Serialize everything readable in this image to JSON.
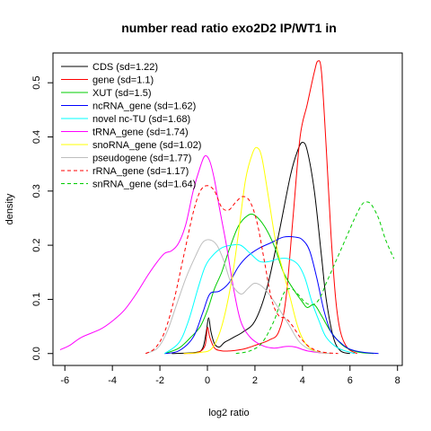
{
  "chart_data": {
    "type": "line",
    "title": "number read ratio exo2D2 IP/WT1 in",
    "xlabel": "log2 ratio",
    "ylabel": "density",
    "xlim": [
      -6.5,
      8.2
    ],
    "ylim": [
      -0.022,
      0.555
    ],
    "xticks": [
      -6,
      -4,
      -2,
      0,
      2,
      4,
      6,
      8
    ],
    "yticks": [
      0.0,
      0.1,
      0.2,
      0.3,
      0.4,
      0.5
    ],
    "ytick_labels": [
      "0.0",
      "0.1",
      "0.2",
      "0.3",
      "0.4",
      "0.5"
    ],
    "grid": false,
    "legend_position": "top-left",
    "series": [
      {
        "name": "CDS (sd=1.22)",
        "color": "#000000",
        "dash": "solid",
        "points": [
          [
            -1.5,
            0
          ],
          [
            -0.5,
            0.002
          ],
          [
            -0.2,
            0.01
          ],
          [
            -0.05,
            0.04
          ],
          [
            0.05,
            0.066
          ],
          [
            0.15,
            0.04
          ],
          [
            0.3,
            0.018
          ],
          [
            0.5,
            0.012
          ],
          [
            0.7,
            0.02
          ],
          [
            0.9,
            0.025
          ],
          [
            1.1,
            0.03
          ],
          [
            1.5,
            0.04
          ],
          [
            2.0,
            0.06
          ],
          [
            2.5,
            0.12
          ],
          [
            3.0,
            0.22
          ],
          [
            3.5,
            0.33
          ],
          [
            3.8,
            0.375
          ],
          [
            4.0,
            0.39
          ],
          [
            4.2,
            0.375
          ],
          [
            4.5,
            0.3
          ],
          [
            4.8,
            0.18
          ],
          [
            5.0,
            0.1
          ],
          [
            5.3,
            0.03
          ],
          [
            5.6,
            0.005
          ],
          [
            6.0,
            0
          ]
        ]
      },
      {
        "name": "gene (sd=1.1)",
        "color": "#ff0000",
        "dash": "solid",
        "points": [
          [
            -1.0,
            0
          ],
          [
            -0.4,
            0.002
          ],
          [
            -0.1,
            0.015
          ],
          [
            0.0,
            0.048
          ],
          [
            0.1,
            0.03
          ],
          [
            0.3,
            0.01
          ],
          [
            0.6,
            0.005
          ],
          [
            1.0,
            0.005
          ],
          [
            1.5,
            0.008
          ],
          [
            2.0,
            0.015
          ],
          [
            2.6,
            0.025
          ],
          [
            3.0,
            0.04
          ],
          [
            3.3,
            0.1
          ],
          [
            3.6,
            0.25
          ],
          [
            3.9,
            0.4
          ],
          [
            4.2,
            0.46
          ],
          [
            4.5,
            0.52
          ],
          [
            4.65,
            0.54
          ],
          [
            4.8,
            0.52
          ],
          [
            5.0,
            0.38
          ],
          [
            5.2,
            0.22
          ],
          [
            5.4,
            0.1
          ],
          [
            5.6,
            0.04
          ],
          [
            5.9,
            0.01
          ],
          [
            6.3,
            0
          ]
        ]
      },
      {
        "name": "XUT (sd=1.5)",
        "color": "#00cc00",
        "dash": "solid",
        "points": [
          [
            -1.8,
            0
          ],
          [
            -1.2,
            0.01
          ],
          [
            -0.7,
            0.03
          ],
          [
            -0.3,
            0.05
          ],
          [
            0.0,
            0.08
          ],
          [
            0.3,
            0.12
          ],
          [
            0.6,
            0.15
          ],
          [
            0.9,
            0.19
          ],
          [
            1.3,
            0.235
          ],
          [
            1.7,
            0.255
          ],
          [
            2.0,
            0.255
          ],
          [
            2.4,
            0.235
          ],
          [
            2.8,
            0.2
          ],
          [
            3.2,
            0.15
          ],
          [
            3.6,
            0.12
          ],
          [
            4.0,
            0.095
          ],
          [
            4.2,
            0.085
          ],
          [
            4.5,
            0.09
          ],
          [
            4.8,
            0.07
          ],
          [
            5.2,
            0.04
          ],
          [
            5.7,
            0.015
          ],
          [
            6.3,
            0.003
          ],
          [
            7.0,
            0
          ]
        ]
      },
      {
        "name": "ncRNA_gene (sd=1.62)",
        "color": "#0000ff",
        "dash": "solid",
        "points": [
          [
            -1.8,
            0
          ],
          [
            -1.2,
            0.005
          ],
          [
            -0.6,
            0.03
          ],
          [
            -0.2,
            0.075
          ],
          [
            0.1,
            0.11
          ],
          [
            0.5,
            0.115
          ],
          [
            0.9,
            0.13
          ],
          [
            1.3,
            0.16
          ],
          [
            1.7,
            0.18
          ],
          [
            2.2,
            0.195
          ],
          [
            2.7,
            0.205
          ],
          [
            3.2,
            0.215
          ],
          [
            3.7,
            0.215
          ],
          [
            4.0,
            0.21
          ],
          [
            4.3,
            0.19
          ],
          [
            4.6,
            0.14
          ],
          [
            4.9,
            0.08
          ],
          [
            5.2,
            0.04
          ],
          [
            5.6,
            0.02
          ],
          [
            6.0,
            0.008
          ],
          [
            6.6,
            0.002
          ],
          [
            7.2,
            0
          ]
        ]
      },
      {
        "name": "novel nc-TU (sd=1.68)",
        "color": "#00ffff",
        "dash": "solid",
        "points": [
          [
            -1.8,
            0
          ],
          [
            -1.2,
            0.02
          ],
          [
            -0.8,
            0.06
          ],
          [
            -0.4,
            0.12
          ],
          [
            -0.1,
            0.16
          ],
          [
            0.2,
            0.18
          ],
          [
            0.6,
            0.195
          ],
          [
            1.0,
            0.2
          ],
          [
            1.4,
            0.2
          ],
          [
            1.8,
            0.185
          ],
          [
            2.2,
            0.17
          ],
          [
            2.6,
            0.17
          ],
          [
            3.0,
            0.175
          ],
          [
            3.4,
            0.175
          ],
          [
            3.8,
            0.165
          ],
          [
            4.1,
            0.14
          ],
          [
            4.4,
            0.095
          ],
          [
            4.7,
            0.06
          ],
          [
            5.0,
            0.03
          ],
          [
            5.5,
            0.01
          ],
          [
            6.2,
            0
          ]
        ]
      },
      {
        "name": "tRNA_gene (sd=1.74)",
        "color": "#ff00ff",
        "dash": "solid",
        "points": [
          [
            -6.2,
            0.007
          ],
          [
            -5.8,
            0.015
          ],
          [
            -5.3,
            0.03
          ],
          [
            -4.5,
            0.045
          ],
          [
            -4.0,
            0.06
          ],
          [
            -3.5,
            0.08
          ],
          [
            -3.0,
            0.11
          ],
          [
            -2.5,
            0.145
          ],
          [
            -2.1,
            0.17
          ],
          [
            -1.8,
            0.185
          ],
          [
            -1.5,
            0.19
          ],
          [
            -1.2,
            0.205
          ],
          [
            -0.9,
            0.24
          ],
          [
            -0.6,
            0.3
          ],
          [
            -0.3,
            0.345
          ],
          [
            -0.1,
            0.365
          ],
          [
            0.1,
            0.355
          ],
          [
            0.3,
            0.32
          ],
          [
            0.5,
            0.27
          ],
          [
            0.8,
            0.2
          ],
          [
            1.1,
            0.12
          ],
          [
            1.4,
            0.06
          ],
          [
            1.8,
            0.03
          ],
          [
            2.3,
            0.015
          ],
          [
            2.8,
            0.01
          ],
          [
            3.3,
            0.013
          ],
          [
            3.7,
            0.012
          ],
          [
            4.2,
            0.005
          ],
          [
            5.0,
            0
          ]
        ]
      },
      {
        "name": "snoRNA_gene (sd=1.02)",
        "color": "#ffff00",
        "dash": "solid",
        "points": [
          [
            -1.0,
            0
          ],
          [
            -0.3,
            0.002
          ],
          [
            0.2,
            0.01
          ],
          [
            0.6,
            0.05
          ],
          [
            1.0,
            0.13
          ],
          [
            1.3,
            0.22
          ],
          [
            1.6,
            0.32
          ],
          [
            1.9,
            0.37
          ],
          [
            2.1,
            0.38
          ],
          [
            2.3,
            0.36
          ],
          [
            2.6,
            0.28
          ],
          [
            2.9,
            0.2
          ],
          [
            3.2,
            0.15
          ],
          [
            3.5,
            0.1
          ],
          [
            3.8,
            0.05
          ],
          [
            4.1,
            0.02
          ],
          [
            4.5,
            0.005
          ],
          [
            5.0,
            0
          ]
        ]
      },
      {
        "name": "pseudogene (sd=1.77)",
        "color": "#bebebe",
        "dash": "solid",
        "points": [
          [
            -2.6,
            0
          ],
          [
            -2.1,
            0.01
          ],
          [
            -1.7,
            0.04
          ],
          [
            -1.3,
            0.09
          ],
          [
            -0.9,
            0.14
          ],
          [
            -0.5,
            0.18
          ],
          [
            -0.2,
            0.205
          ],
          [
            0.1,
            0.21
          ],
          [
            0.4,
            0.2
          ],
          [
            0.7,
            0.17
          ],
          [
            1.0,
            0.13
          ],
          [
            1.4,
            0.11
          ],
          [
            1.7,
            0.12
          ],
          [
            2.0,
            0.13
          ],
          [
            2.4,
            0.12
          ],
          [
            2.9,
            0.09
          ],
          [
            3.4,
            0.055
          ],
          [
            3.9,
            0.02
          ],
          [
            4.5,
            0.004
          ],
          [
            5.2,
            0
          ]
        ]
      },
      {
        "name": "rRNA_gene (sd=1.17)",
        "color": "#ff0000",
        "dash": "dashed",
        "points": [
          [
            -2.6,
            0
          ],
          [
            -2.2,
            0.01
          ],
          [
            -1.8,
            0.04
          ],
          [
            -1.4,
            0.1
          ],
          [
            -1.0,
            0.18
          ],
          [
            -0.6,
            0.26
          ],
          [
            -0.3,
            0.3
          ],
          [
            0.0,
            0.31
          ],
          [
            0.3,
            0.3
          ],
          [
            0.6,
            0.27
          ],
          [
            0.9,
            0.265
          ],
          [
            1.2,
            0.28
          ],
          [
            1.5,
            0.29
          ],
          [
            1.8,
            0.28
          ],
          [
            2.1,
            0.24
          ],
          [
            2.4,
            0.17
          ],
          [
            2.7,
            0.1
          ],
          [
            3.0,
            0.07
          ],
          [
            3.3,
            0.065
          ],
          [
            3.6,
            0.05
          ],
          [
            3.9,
            0.03
          ],
          [
            4.3,
            0.012
          ],
          [
            4.8,
            0.003
          ],
          [
            5.5,
            0
          ]
        ]
      },
      {
        "name": "snRNA_gene (sd=1.64)",
        "color": "#00cc00",
        "dash": "dashed",
        "points": [
          [
            1.2,
            0
          ],
          [
            1.8,
            0.005
          ],
          [
            2.3,
            0.02
          ],
          [
            2.8,
            0.06
          ],
          [
            3.2,
            0.11
          ],
          [
            3.5,
            0.12
          ],
          [
            3.8,
            0.11
          ],
          [
            4.1,
            0.095
          ],
          [
            4.4,
            0.09
          ],
          [
            4.7,
            0.1
          ],
          [
            5.0,
            0.13
          ],
          [
            5.3,
            0.16
          ],
          [
            5.6,
            0.19
          ],
          [
            5.9,
            0.22
          ],
          [
            6.2,
            0.25
          ],
          [
            6.5,
            0.275
          ],
          [
            6.7,
            0.28
          ],
          [
            6.9,
            0.275
          ],
          [
            7.2,
            0.25
          ],
          [
            7.5,
            0.21
          ],
          [
            7.85,
            0.175
          ]
        ]
      }
    ]
  }
}
